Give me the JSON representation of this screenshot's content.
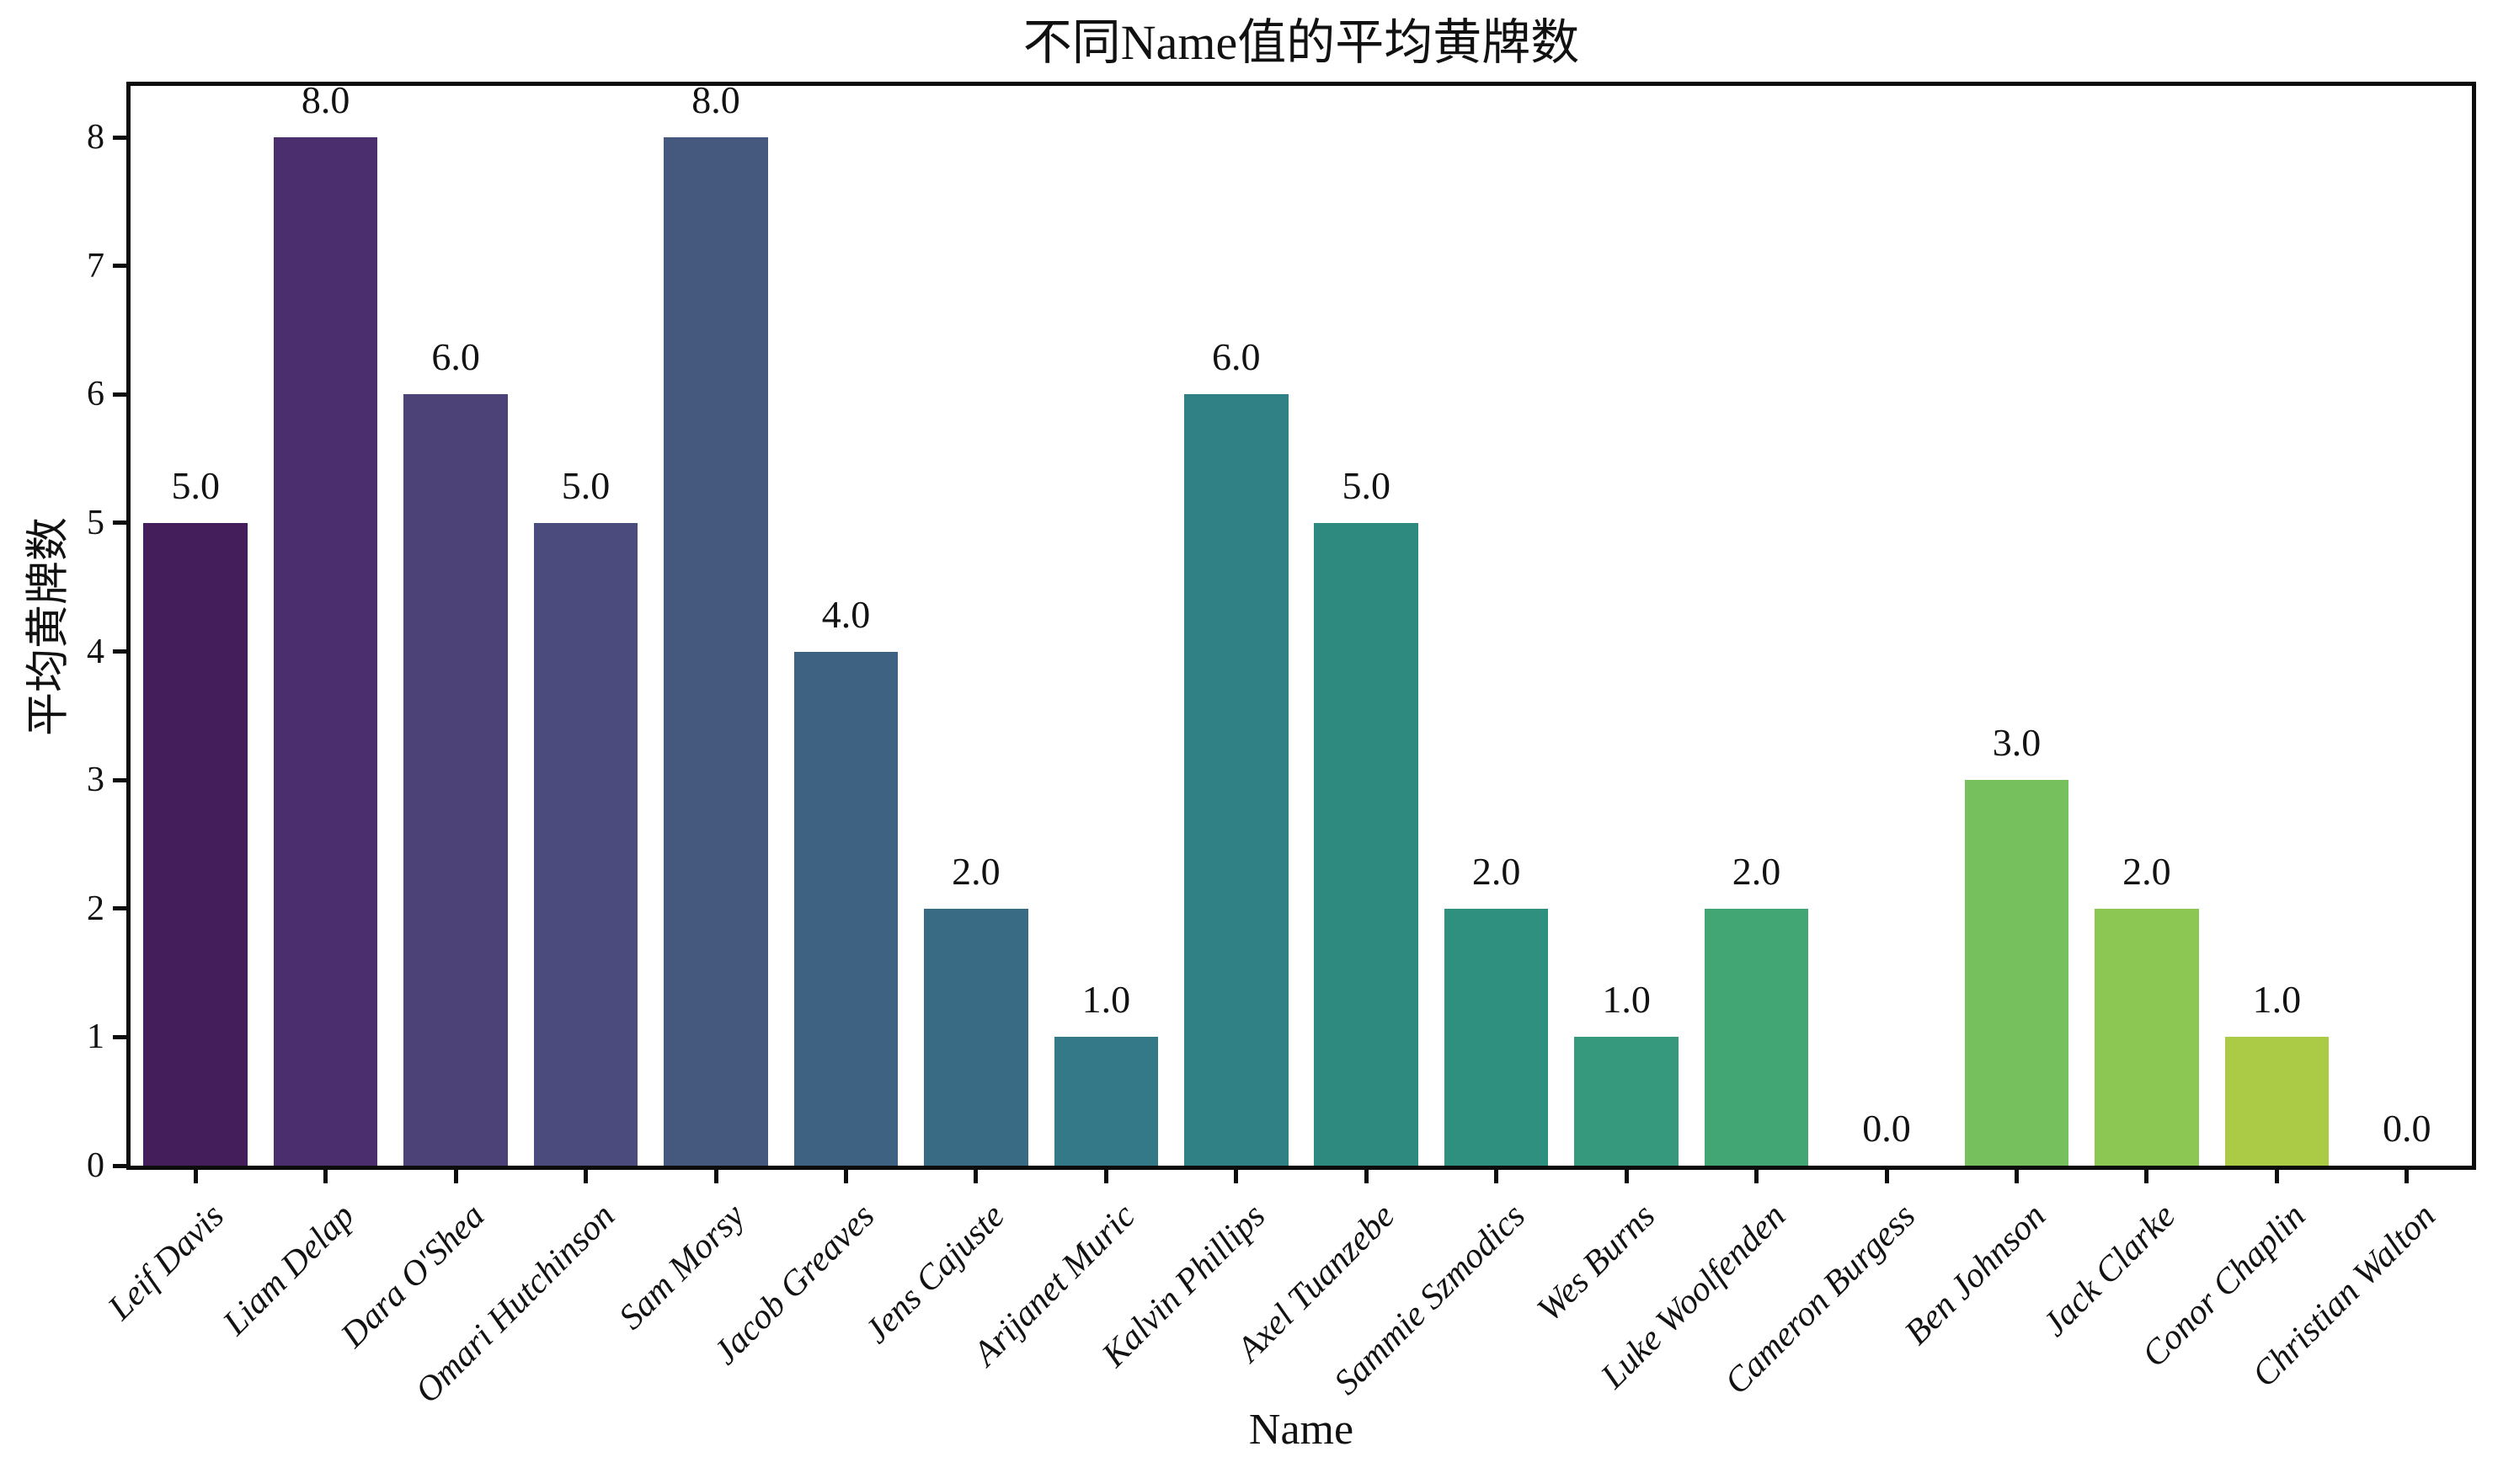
{
  "figure": {
    "background": "#ffffff",
    "text_color": "#111111",
    "axis_color": "#0d0d0d"
  },
  "chart_data": {
    "type": "bar",
    "title": "不同Name值的平均黄牌数",
    "xlabel": "Name",
    "ylabel": "平均黄牌数",
    "categories": [
      "Leif Davis",
      "Liam Delap",
      "Dara O'Shea",
      "Omari Hutchinson",
      "Sam Morsy",
      "Jacob Greaves",
      "Jens Cajuste",
      "Arijanet Muric",
      "Kalvin Phillips",
      "Axel Tuanzebe",
      "Sammie Szmodics",
      "Wes Burns",
      "Luke Woolfenden",
      "Cameron Burgess",
      "Ben Johnson",
      "Jack Clarke",
      "Conor Chaplin",
      "Christian Walton"
    ],
    "values": [
      5,
      8,
      6,
      5,
      8,
      4,
      2,
      1,
      6,
      5,
      2,
      1,
      2,
      0,
      3,
      2,
      1,
      0
    ],
    "bar_labels": [
      "5.0",
      "8.0",
      "6.0",
      "5.0",
      "8.0",
      "4.0",
      "2.0",
      "1.0",
      "6.0",
      "5.0",
      "2.0",
      "1.0",
      "2.0",
      "0.0",
      "3.0",
      "2.0",
      "1.0",
      "0.0"
    ],
    "bar_colors": [
      "#441d5b",
      "#4a2e6d",
      "#4d4278",
      "#4b4b7e",
      "#45597f",
      "#3e6282",
      "#3a6b85",
      "#337988",
      "#2f8186",
      "#2e8a7e",
      "#30907f",
      "#36987c",
      "#41a574",
      "#5bb26c",
      "#76c05e",
      "#8cc653",
      "#abca45",
      "#c3cb3e"
    ],
    "yticks": [
      "0",
      "1",
      "2",
      "3",
      "4",
      "5",
      "6",
      "7",
      "8"
    ],
    "ylim": [
      0,
      8.4
    ],
    "grid": false,
    "legend_position": "none",
    "bar_width_fraction": 0.8
  }
}
